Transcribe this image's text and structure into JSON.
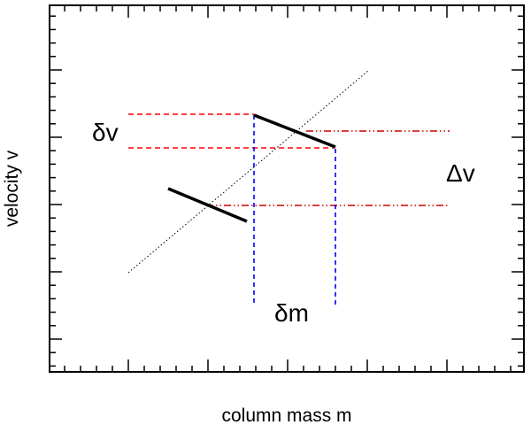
{
  "axes": {
    "xlabel": "column mass m",
    "ylabel": "velocity v"
  },
  "annotations": {
    "delta_v_small": "δv",
    "delta_m": "δm",
    "delta_v_large": "Δv"
  },
  "colors": {
    "frame": "#000000",
    "segments": "#000000",
    "dotted_line": "#000000",
    "red_dashed": "#ff0000",
    "red_dashdot": "#cc0000",
    "blue_dashed": "#0000ff"
  }
}
